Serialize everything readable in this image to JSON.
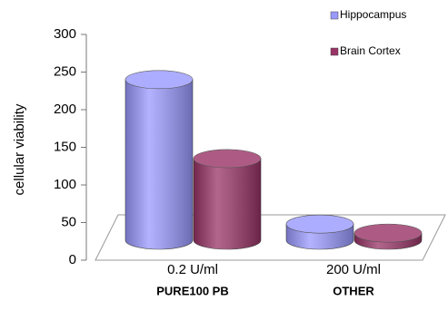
{
  "chart_data": {
    "type": "bar3d-cylinder",
    "y_axis_label": "cellular viability",
    "categories": [
      "0.2 U/ml",
      "200 U/ml"
    ],
    "category_sublabels": [
      "PURE100 PB",
      "OTHER"
    ],
    "series": [
      {
        "name": "Hippocampus",
        "color": "#9999ff",
        "values": [
          240,
          48
        ]
      },
      {
        "name": "Brain Cortex",
        "color": "#993366",
        "values": [
          135,
          36
        ]
      }
    ],
    "ylim": [
      0,
      300
    ],
    "yticks": [
      0,
      50,
      100,
      150,
      200,
      250,
      300
    ],
    "legend": "top-right"
  }
}
